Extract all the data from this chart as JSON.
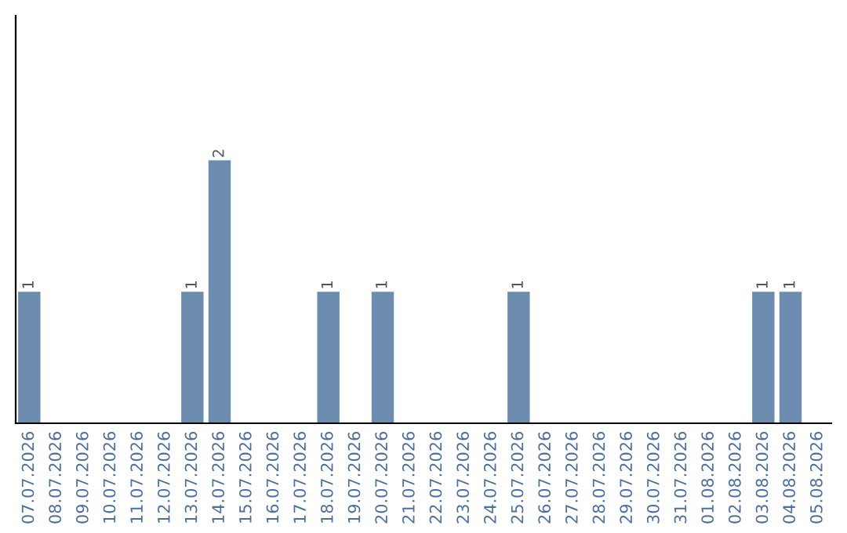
{
  "chart_data": {
    "type": "bar",
    "categories": [
      "07.07.2026",
      "08.07.2026",
      "09.07.2026",
      "10.07.2026",
      "11.07.2026",
      "12.07.2026",
      "13.07.2026",
      "14.07.2026",
      "15.07.2026",
      "16.07.2026",
      "17.07.2026",
      "18.07.2026",
      "19.07.2026",
      "20.07.2026",
      "21.07.2026",
      "22.07.2026",
      "23.07.2026",
      "24.07.2026",
      "25.07.2026",
      "26.07.2026",
      "27.07.2026",
      "28.07.2026",
      "29.07.2026",
      "30.07.2026",
      "31.07.2026",
      "01.08.2026",
      "02.08.2026",
      "03.08.2026",
      "04.08.2026",
      "05.08.2026"
    ],
    "values": [
      1,
      0,
      0,
      0,
      0,
      0,
      1,
      2,
      0,
      0,
      0,
      1,
      0,
      1,
      0,
      0,
      0,
      0,
      1,
      0,
      0,
      0,
      0,
      0,
      0,
      0,
      0,
      1,
      1,
      0
    ],
    "value_labels": [
      "1",
      null,
      null,
      null,
      null,
      null,
      "1",
      "2",
      null,
      null,
      null,
      "1",
      null,
      "1",
      null,
      null,
      null,
      null,
      "1",
      null,
      null,
      null,
      null,
      null,
      null,
      null,
      null,
      "1",
      "1",
      null
    ],
    "color": "#6b8cae",
    "tick_labels": "x",
    "grid": false,
    "legend": false
  }
}
